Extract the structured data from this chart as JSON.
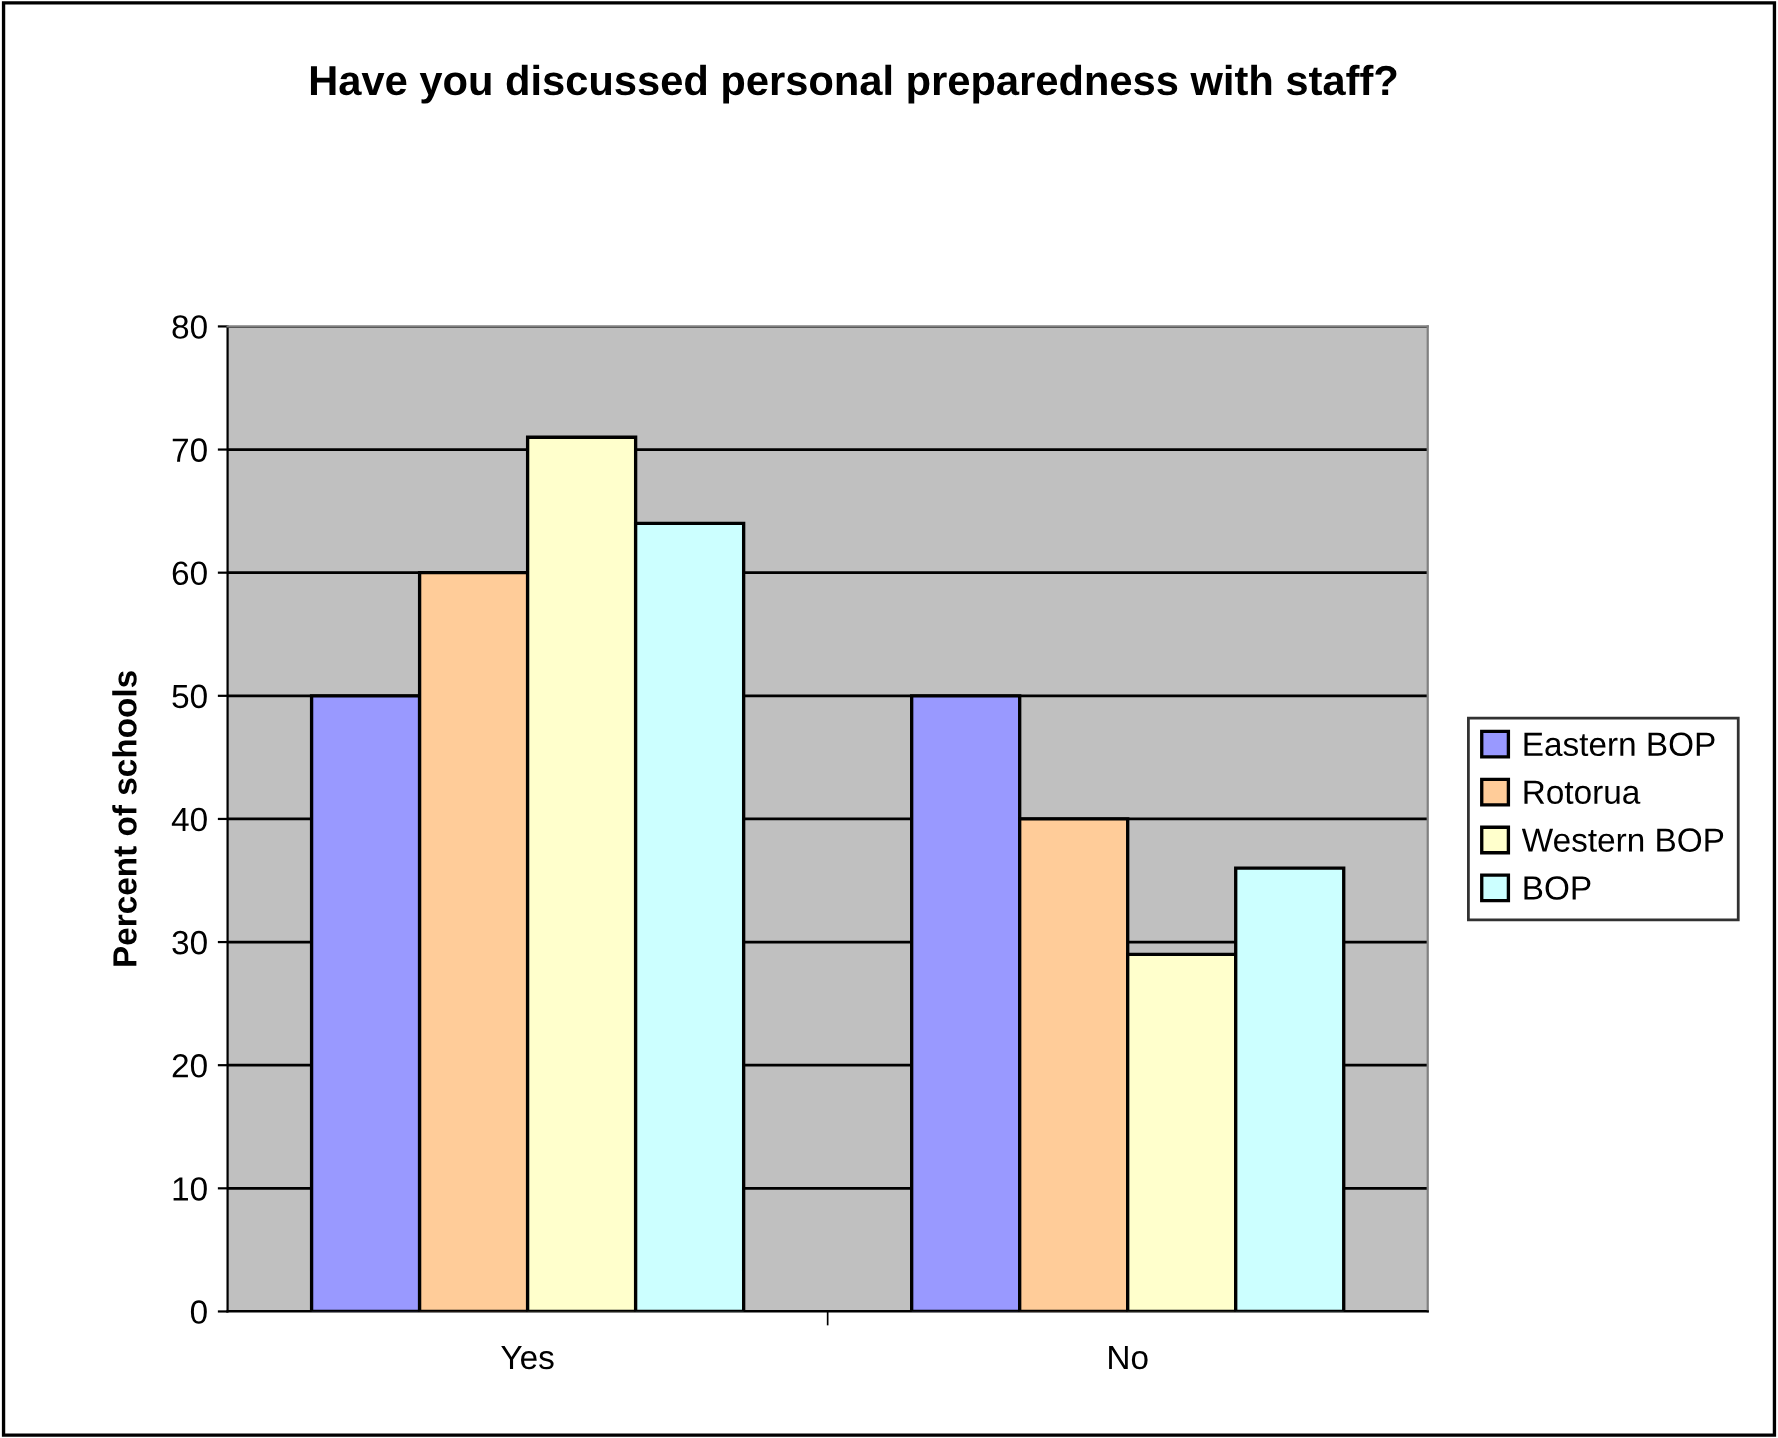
{
  "chart_data": {
    "type": "bar",
    "title": "Have you discussed personal preparedness with staff?",
    "ylabel": "Percent of schools",
    "categories": [
      "Yes",
      "No"
    ],
    "series": [
      {
        "name": "Eastern BOP",
        "color": "#9999ff",
        "values": [
          50,
          50
        ]
      },
      {
        "name": "Rotorua",
        "color": "#ffcc99",
        "values": [
          60,
          40
        ]
      },
      {
        "name": "Western BOP",
        "color": "#ffffcc",
        "values": [
          71,
          29
        ]
      },
      {
        "name": "BOP",
        "color": "#ccffff",
        "values": [
          64,
          36
        ]
      }
    ],
    "ylim": [
      0,
      80
    ],
    "yticks": [
      0,
      10,
      20,
      30,
      40,
      50,
      60,
      70,
      80
    ],
    "grid": "y",
    "legend": "right"
  }
}
